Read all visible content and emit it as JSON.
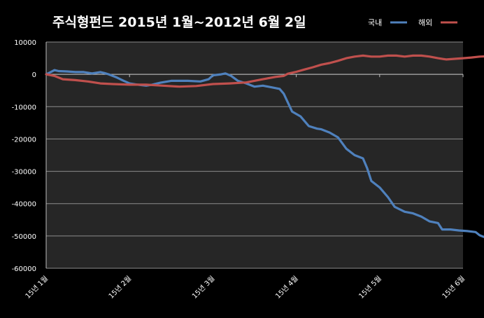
{
  "chart_data": {
    "type": "line",
    "title": "주식형펀드  2015년 1월~2012년 6월 2일",
    "xlabel": "",
    "ylabel": "",
    "x_ticks": [
      "15년 1월",
      "15년 2월",
      "15년 3월",
      "15년 4월",
      "15년 5월",
      "15년 6월"
    ],
    "ylim": [
      -60000,
      10000
    ],
    "y_ticks": [
      "10000",
      "0",
      "-10000",
      "-20000",
      "-30000",
      "-40000",
      "-50000",
      "-60000"
    ],
    "grid": true,
    "legend_position": "top-right",
    "colors": {
      "국내": "#4f81bd",
      "해외": "#c0504d",
      "plot_bg": "#262626",
      "grid": "#8c8c8c"
    },
    "series": [
      {
        "name": "국내",
        "values": [
          [
            0,
            0
          ],
          [
            0.04,
            500
          ],
          [
            0.1,
            1300
          ],
          [
            0.15,
            1000
          ],
          [
            0.25,
            900
          ],
          [
            0.35,
            700
          ],
          [
            0.45,
            700
          ],
          [
            0.55,
            300
          ],
          [
            0.65,
            700
          ],
          [
            0.7,
            400
          ],
          [
            0.75,
            0
          ],
          [
            0.85,
            -1000
          ],
          [
            0.93,
            -2000
          ],
          [
            1.0,
            -2800
          ],
          [
            1.1,
            -3200
          ],
          [
            1.2,
            -3500
          ],
          [
            1.27,
            -3200
          ],
          [
            1.37,
            -2600
          ],
          [
            1.5,
            -2000
          ],
          [
            1.7,
            -2000
          ],
          [
            1.85,
            -2200
          ],
          [
            1.95,
            -1500
          ],
          [
            2.0,
            -300
          ],
          [
            2.1,
            0
          ],
          [
            2.15,
            300
          ],
          [
            2.22,
            -500
          ],
          [
            2.3,
            -2000
          ],
          [
            2.4,
            -2800
          ],
          [
            2.5,
            -3800
          ],
          [
            2.6,
            -3500
          ],
          [
            2.7,
            -4000
          ],
          [
            2.8,
            -4500
          ],
          [
            2.85,
            -6000
          ],
          [
            2.95,
            -11500
          ],
          [
            3.05,
            -13000
          ],
          [
            3.15,
            -16000
          ],
          [
            3.25,
            -16800
          ],
          [
            3.3,
            -17000
          ],
          [
            3.4,
            -18000
          ],
          [
            3.5,
            -19500
          ],
          [
            3.6,
            -23000
          ],
          [
            3.7,
            -25000
          ],
          [
            3.8,
            -26000
          ],
          [
            3.85,
            -29000
          ],
          [
            3.9,
            -33000
          ],
          [
            4.0,
            -35000
          ],
          [
            4.1,
            -38000
          ],
          [
            4.18,
            -41000
          ],
          [
            4.3,
            -42500
          ],
          [
            4.4,
            -43000
          ],
          [
            4.5,
            -44000
          ],
          [
            4.6,
            -45500
          ],
          [
            4.7,
            -46000
          ],
          [
            4.75,
            -48000
          ],
          [
            4.85,
            -48000
          ],
          [
            4.95,
            -48300
          ],
          [
            5.05,
            -48500
          ],
          [
            5.15,
            -48800
          ],
          [
            5.2,
            -49800
          ],
          [
            5.25,
            -50300
          ],
          [
            5.3,
            -49800
          ],
          [
            5.4,
            -49500
          ],
          [
            5.5,
            -48800
          ],
          [
            5.55,
            -48500
          ],
          [
            5.65,
            -48200
          ],
          [
            5.72,
            -48000
          ],
          [
            5.78,
            -47500
          ],
          [
            5.83,
            -46500
          ]
        ]
      },
      {
        "name": "해외",
        "values": [
          [
            0,
            0
          ],
          [
            0.1,
            -500
          ],
          [
            0.2,
            -1500
          ],
          [
            0.35,
            -1800
          ],
          [
            0.5,
            -2200
          ],
          [
            0.65,
            -2800
          ],
          [
            0.8,
            -3000
          ],
          [
            1.0,
            -3200
          ],
          [
            1.2,
            -3200
          ],
          [
            1.4,
            -3500
          ],
          [
            1.6,
            -3800
          ],
          [
            1.8,
            -3600
          ],
          [
            2.0,
            -3000
          ],
          [
            2.2,
            -2800
          ],
          [
            2.4,
            -2500
          ],
          [
            2.6,
            -1500
          ],
          [
            2.75,
            -800
          ],
          [
            2.85,
            -500
          ],
          [
            2.9,
            200
          ],
          [
            3.0,
            800
          ],
          [
            3.1,
            1500
          ],
          [
            3.2,
            2200
          ],
          [
            3.3,
            3000
          ],
          [
            3.4,
            3500
          ],
          [
            3.5,
            4200
          ],
          [
            3.6,
            5000
          ],
          [
            3.7,
            5500
          ],
          [
            3.8,
            5800
          ],
          [
            3.9,
            5500
          ],
          [
            4.0,
            5500
          ],
          [
            4.1,
            5800
          ],
          [
            4.2,
            5800
          ],
          [
            4.3,
            5500
          ],
          [
            4.4,
            5800
          ],
          [
            4.5,
            5800
          ],
          [
            4.6,
            5500
          ],
          [
            4.7,
            5000
          ],
          [
            4.8,
            4600
          ],
          [
            4.9,
            4800
          ],
          [
            5.0,
            5000
          ],
          [
            5.1,
            5200
          ],
          [
            5.2,
            5500
          ],
          [
            5.3,
            5600
          ],
          [
            5.4,
            5800
          ],
          [
            5.5,
            5800
          ],
          [
            5.6,
            4500
          ],
          [
            5.7,
            4000
          ],
          [
            5.8,
            3500
          ]
        ]
      }
    ]
  }
}
